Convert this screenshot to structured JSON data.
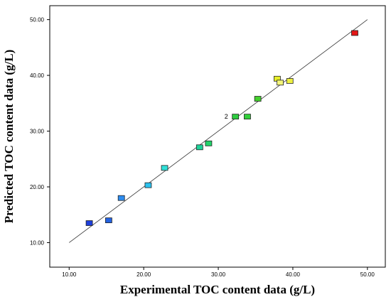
{
  "chart_data": {
    "type": "scatter",
    "title": "",
    "xlabel": "Experimental TOC content data (g/L)",
    "ylabel": "Predicted TOC content data (g/L)",
    "xlim": [
      7.4,
      52.4
    ],
    "ylim": [
      5.6,
      52.5
    ],
    "x_ticks": [
      "10.00",
      "20.00",
      "30.00",
      "40.00",
      "50.00"
    ],
    "y_ticks": [
      "10.00",
      "20.00",
      "30.00",
      "40.00",
      "50.00"
    ],
    "grid": false,
    "reference_line": {
      "x": [
        10,
        50
      ],
      "y": [
        10,
        50
      ]
    },
    "points": [
      {
        "x": 12.7,
        "y": 13.5,
        "color": "#1d3fdc"
      },
      {
        "x": 15.3,
        "y": 14.0,
        "color": "#2463e0"
      },
      {
        "x": 17.0,
        "y": 18.0,
        "color": "#2c8cf0"
      },
      {
        "x": 20.6,
        "y": 20.3,
        "color": "#2bc2ef"
      },
      {
        "x": 22.8,
        "y": 23.4,
        "color": "#2fe0d8"
      },
      {
        "x": 27.5,
        "y": 27.1,
        "color": "#1fd39a"
      },
      {
        "x": 28.7,
        "y": 27.8,
        "color": "#22d36a"
      },
      {
        "x": 32.3,
        "y": 32.6,
        "color": "#2ecc40"
      },
      {
        "x": 33.9,
        "y": 32.6,
        "color": "#32cf3a"
      },
      {
        "x": 35.3,
        "y": 35.8,
        "color": "#44d02e"
      },
      {
        "x": 37.9,
        "y": 39.4,
        "color": "#e8ef2a"
      },
      {
        "x": 38.3,
        "y": 38.7,
        "color": "#f3f57a"
      },
      {
        "x": 39.6,
        "y": 39.0,
        "color": "#eef040"
      },
      {
        "x": 48.3,
        "y": 47.6,
        "color": "#e41717"
      }
    ],
    "point_annotations": [
      {
        "text": "2",
        "x": 31.5,
        "y": 32.6
      }
    ]
  }
}
